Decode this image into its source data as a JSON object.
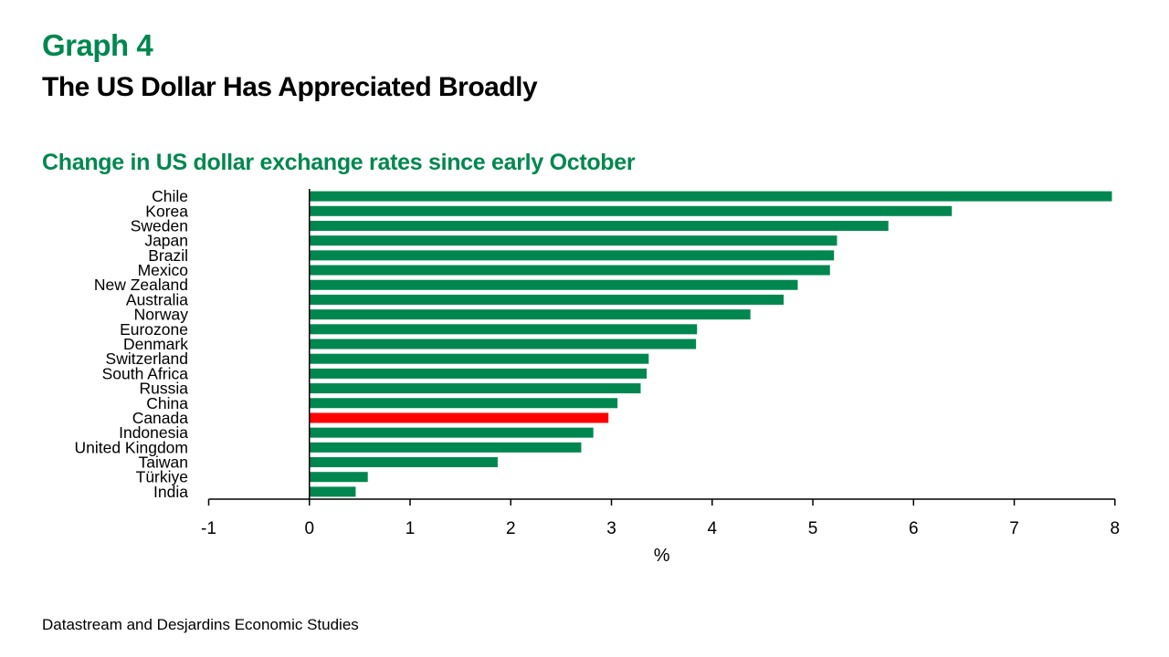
{
  "header": {
    "graph_number": "Graph 4",
    "title": "The US Dollar Has Appreciated Broadly",
    "subtitle": "Change in US dollar exchange rates since early October"
  },
  "footer": {
    "source": "Datastream and Desjardins Economic Studies"
  },
  "colors": {
    "accent": "#00874F",
    "bar_default": "#00874F",
    "bar_highlight": "#FF0000",
    "axis": "#000000"
  },
  "chart_data": {
    "type": "bar",
    "orientation": "horizontal",
    "title": "Change in US dollar exchange rates since early October",
    "xlabel": "%",
    "ylabel": "",
    "xlim": [
      -1,
      8
    ],
    "x_ticks": [
      "-1",
      "0",
      "1",
      "2",
      "3",
      "4",
      "5",
      "6",
      "7",
      "8"
    ],
    "grid": false,
    "highlight": "Canada",
    "categories": [
      "Chile",
      "Korea",
      "Sweden",
      "Japan",
      "Brazil",
      "Mexico",
      "New Zealand",
      "Australia",
      "Norway",
      "Eurozone",
      "Denmark",
      "Switzerland",
      "South Africa",
      "Russia",
      "China",
      "Canada",
      "Indonesia",
      "United Kingdom",
      "Taiwan",
      "Türkiye",
      "India"
    ],
    "values": [
      7.97,
      6.38,
      5.75,
      5.24,
      5.21,
      5.17,
      4.85,
      4.71,
      4.38,
      3.85,
      3.84,
      3.37,
      3.35,
      3.29,
      3.06,
      2.97,
      2.82,
      2.7,
      1.87,
      0.58,
      0.46
    ]
  }
}
